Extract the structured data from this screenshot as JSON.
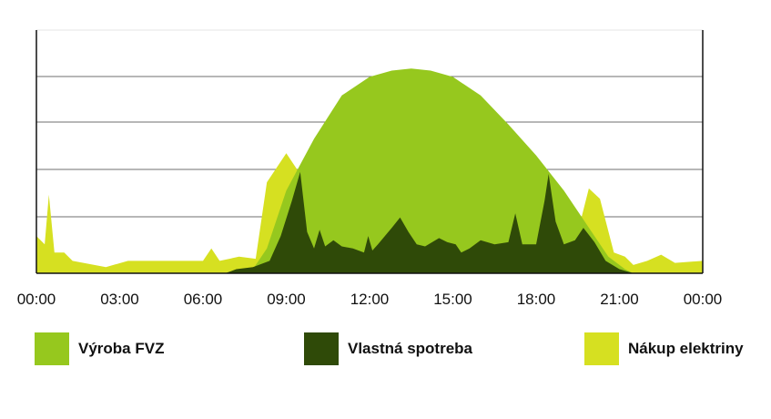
{
  "chart_data": {
    "type": "area",
    "x_ticks": [
      "00:00",
      "03:00",
      "06:00",
      "09:00",
      "12:00",
      "15:00",
      "18:00",
      "21:00",
      "00:00"
    ],
    "xlim": [
      0,
      24
    ],
    "ylim": [
      0,
      100
    ],
    "y_ticks_labeled": false,
    "grid": "horizontal",
    "legend_position": "bottom",
    "series": [
      {
        "name": "Nákup elektriny",
        "color": "#d6e021",
        "points": [
          [
            0.0,
            18
          ],
          [
            0.3,
            14
          ],
          [
            0.45,
            38
          ],
          [
            0.65,
            10
          ],
          [
            1.0,
            10
          ],
          [
            1.3,
            6
          ],
          [
            2.5,
            3
          ],
          [
            3.3,
            6
          ],
          [
            4.5,
            6
          ],
          [
            6.0,
            6
          ],
          [
            6.3,
            12
          ],
          [
            6.6,
            6
          ],
          [
            7.3,
            8
          ],
          [
            7.9,
            7
          ],
          [
            8.3,
            44
          ],
          [
            9.0,
            58
          ],
          [
            9.4,
            50
          ],
          [
            19.5,
            20
          ],
          [
            19.9,
            41
          ],
          [
            20.3,
            36
          ],
          [
            20.8,
            10
          ],
          [
            21.2,
            8
          ],
          [
            21.5,
            4
          ],
          [
            22.0,
            6
          ],
          [
            22.5,
            9
          ],
          [
            23.0,
            5
          ],
          [
            24.0,
            6
          ]
        ]
      },
      {
        "name": "Výroba FVZ",
        "color": "#96c81e",
        "points": [
          [
            7.8,
            2
          ],
          [
            8.3,
            12
          ],
          [
            9.0,
            40
          ],
          [
            10.0,
            65
          ],
          [
            11.0,
            86
          ],
          [
            12.0,
            95
          ],
          [
            12.8,
            98
          ],
          [
            13.5,
            99
          ],
          [
            14.2,
            98
          ],
          [
            15.0,
            95
          ],
          [
            16.0,
            86
          ],
          [
            17.0,
            72
          ],
          [
            18.0,
            57
          ],
          [
            19.0,
            40
          ],
          [
            20.0,
            20
          ],
          [
            20.6,
            8
          ],
          [
            21.2,
            2
          ],
          [
            21.5,
            0
          ]
        ]
      },
      {
        "name": "Vlastná spotreba",
        "color": "#2f4a08",
        "points": [
          [
            6.8,
            0
          ],
          [
            7.2,
            2
          ],
          [
            7.8,
            3
          ],
          [
            8.4,
            6
          ],
          [
            8.8,
            18
          ],
          [
            9.2,
            35
          ],
          [
            9.5,
            49
          ],
          [
            9.75,
            20
          ],
          [
            10.0,
            12
          ],
          [
            10.2,
            21
          ],
          [
            10.4,
            13
          ],
          [
            10.7,
            16
          ],
          [
            11.0,
            13
          ],
          [
            11.4,
            12
          ],
          [
            11.8,
            10
          ],
          [
            11.95,
            18
          ],
          [
            12.1,
            11
          ],
          [
            12.3,
            14
          ],
          [
            12.8,
            22
          ],
          [
            13.1,
            27
          ],
          [
            13.4,
            20
          ],
          [
            13.7,
            14
          ],
          [
            14.0,
            13
          ],
          [
            14.5,
            17
          ],
          [
            14.8,
            15
          ],
          [
            15.1,
            14
          ],
          [
            15.3,
            10
          ],
          [
            15.6,
            12
          ],
          [
            16.0,
            16
          ],
          [
            16.5,
            14
          ],
          [
            17.0,
            15
          ],
          [
            17.25,
            29
          ],
          [
            17.5,
            14
          ],
          [
            18.0,
            14
          ],
          [
            18.3,
            35
          ],
          [
            18.45,
            48
          ],
          [
            18.7,
            25
          ],
          [
            19.0,
            14
          ],
          [
            19.4,
            16
          ],
          [
            19.7,
            22
          ],
          [
            20.1,
            15
          ],
          [
            20.5,
            6
          ],
          [
            21.0,
            2
          ],
          [
            21.5,
            0
          ]
        ]
      }
    ]
  },
  "legend": {
    "items": [
      {
        "label": "Výroba FVZ",
        "color": "#96c81e"
      },
      {
        "label": "Vlastná spotreba",
        "color": "#2f4a08"
      },
      {
        "label": "Nákup elektriny",
        "color": "#d6e021"
      }
    ]
  }
}
